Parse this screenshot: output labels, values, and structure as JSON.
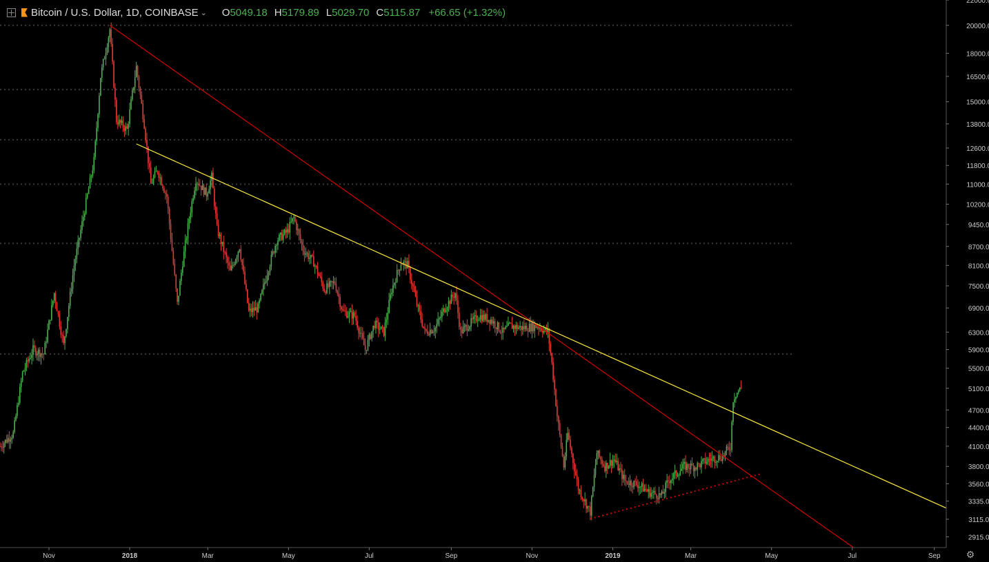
{
  "header": {
    "title": "Bitcoin / U.S. Dollar, 1D, COINBASE",
    "ohlc": [
      {
        "label": "O",
        "value": "5049.18"
      },
      {
        "label": "H",
        "value": "5179.89"
      },
      {
        "label": "L",
        "value": "5029.70"
      },
      {
        "label": "C",
        "value": "5115.87"
      }
    ],
    "change": "+66.65 (+1.32%)"
  },
  "colors": {
    "background": "#000000",
    "up": "#4caf50",
    "down": "#e53935",
    "red_trendline": "#d50000",
    "yellow_trendline": "#ffeb3b",
    "grid": "#3a3a3a",
    "axis_text": "#cccccc"
  },
  "chart_data": {
    "type": "candlestick",
    "scale": "log",
    "x_range": [
      "2017-09-25",
      "2019-09-10"
    ],
    "y_range": [
      2800,
      22000
    ],
    "y_ticks": [
      "22000.00",
      "20000.00",
      "18000.00",
      "16500.00",
      "15000.00",
      "13800.00",
      "12600.00",
      "11800.00",
      "11000.00",
      "10200.00",
      "9450.00",
      "8700.00",
      "8100.00",
      "7500.00",
      "6900.00",
      "6300.00",
      "5900.00",
      "5500.00",
      "5100.00",
      "4700.00",
      "4400.00",
      "4100.00",
      "3800.00",
      "3560.00",
      "3335.00",
      "3115.00",
      "2915.00"
    ],
    "x_ticks": [
      {
        "label": "Nov",
        "date": "2017-11-01"
      },
      {
        "label": "2018",
        "date": "2018-01-01"
      },
      {
        "label": "Mar",
        "date": "2018-03-01"
      },
      {
        "label": "May",
        "date": "2018-05-01"
      },
      {
        "label": "Jul",
        "date": "2018-07-01"
      },
      {
        "label": "Sep",
        "date": "2018-09-01"
      },
      {
        "label": "Nov",
        "date": "2018-11-01"
      },
      {
        "label": "2019",
        "date": "2019-01-01"
      },
      {
        "label": "Mar",
        "date": "2019-03-01"
      },
      {
        "label": "May",
        "date": "2019-05-01"
      },
      {
        "label": "Jul",
        "date": "2019-07-01"
      },
      {
        "label": "Sep",
        "date": "2019-09-01"
      }
    ],
    "horizontal_dotted_levels": [
      20000,
      15700,
      13000,
      11000,
      8800,
      5800
    ],
    "price_path": [
      [
        "2017-09-25",
        4100
      ],
      [
        "2017-10-05",
        4300
      ],
      [
        "2017-10-12",
        5400
      ],
      [
        "2017-10-20",
        5900
      ],
      [
        "2017-10-28",
        5800
      ],
      [
        "2017-11-05",
        7300
      ],
      [
        "2017-11-12",
        6000
      ],
      [
        "2017-11-20",
        8100
      ],
      [
        "2017-11-28",
        10000
      ],
      [
        "2017-12-05",
        12000
      ],
      [
        "2017-12-10",
        16500
      ],
      [
        "2017-12-17",
        19700
      ],
      [
        "2017-12-22",
        14000
      ],
      [
        "2017-12-30",
        13500
      ],
      [
        "2018-01-06",
        17100
      ],
      [
        "2018-01-12",
        13800
      ],
      [
        "2018-01-17",
        11000
      ],
      [
        "2018-01-22",
        11600
      ],
      [
        "2018-01-29",
        10500
      ],
      [
        "2018-02-06",
        7000
      ],
      [
        "2018-02-10",
        8200
      ],
      [
        "2018-02-16",
        10000
      ],
      [
        "2018-02-20",
        11200
      ],
      [
        "2018-02-28",
        10600
      ],
      [
        "2018-03-04",
        11300
      ],
      [
        "2018-03-08",
        9300
      ],
      [
        "2018-03-18",
        7900
      ],
      [
        "2018-03-25",
        8700
      ],
      [
        "2018-04-01",
        6800
      ],
      [
        "2018-04-08",
        6900
      ],
      [
        "2018-04-15",
        7900
      ],
      [
        "2018-04-22",
        8900
      ],
      [
        "2018-04-30",
        9200
      ],
      [
        "2018-05-05",
        9700
      ],
      [
        "2018-05-12",
        8600
      ],
      [
        "2018-05-20",
        8200
      ],
      [
        "2018-05-28",
        7400
      ],
      [
        "2018-06-05",
        7600
      ],
      [
        "2018-06-11",
        6800
      ],
      [
        "2018-06-20",
        6700
      ],
      [
        "2018-06-28",
        5900
      ],
      [
        "2018-07-05",
        6500
      ],
      [
        "2018-07-12",
        6300
      ],
      [
        "2018-07-18",
        7400
      ],
      [
        "2018-07-25",
        8200
      ],
      [
        "2018-07-30",
        8100
      ],
      [
        "2018-08-06",
        7000
      ],
      [
        "2018-08-12",
        6300
      ],
      [
        "2018-08-20",
        6400
      ],
      [
        "2018-08-27",
        6900
      ],
      [
        "2018-09-04",
        7300
      ],
      [
        "2018-09-08",
        6300
      ],
      [
        "2018-09-15",
        6500
      ],
      [
        "2018-09-22",
        6700
      ],
      [
        "2018-10-01",
        6600
      ],
      [
        "2018-10-10",
        6300
      ],
      [
        "2018-10-15",
        6450
      ],
      [
        "2018-10-25",
        6400
      ],
      [
        "2018-11-05",
        6450
      ],
      [
        "2018-11-13",
        6300
      ],
      [
        "2018-11-16",
        5600
      ],
      [
        "2018-11-20",
        4600
      ],
      [
        "2018-11-25",
        3800
      ],
      [
        "2018-11-28",
        4300
      ],
      [
        "2018-12-06",
        3500
      ],
      [
        "2018-12-15",
        3200
      ],
      [
        "2018-12-20",
        4000
      ],
      [
        "2018-12-26",
        3800
      ],
      [
        "2019-01-02",
        3900
      ],
      [
        "2019-01-10",
        3600
      ],
      [
        "2019-01-20",
        3550
      ],
      [
        "2019-01-28",
        3450
      ],
      [
        "2019-02-07",
        3400
      ],
      [
        "2019-02-12",
        3600
      ],
      [
        "2019-02-18",
        3700
      ],
      [
        "2019-02-24",
        3800
      ],
      [
        "2019-03-05",
        3800
      ],
      [
        "2019-03-15",
        3900
      ],
      [
        "2019-03-25",
        3950
      ],
      [
        "2019-03-31",
        4100
      ],
      [
        "2019-04-02",
        4900
      ],
      [
        "2019-04-04",
        5000
      ],
      [
        "2019-04-08",
        5100
      ]
    ],
    "trendlines": [
      {
        "color": "red",
        "style": "solid",
        "from": [
          "2017-12-17",
          20000
        ],
        "to": [
          "2018-11-01",
          6550
        ],
        "extend": "right"
      },
      {
        "color": "yellow",
        "style": "solid",
        "from": [
          "2018-01-06",
          12800
        ],
        "to": [
          "2018-11-01",
          6550
        ],
        "extend": "right"
      },
      {
        "color": "red",
        "style": "dotted",
        "from": [
          "2018-12-15",
          3120
        ],
        "to": [
          "2019-04-24",
          3700
        ]
      }
    ]
  }
}
